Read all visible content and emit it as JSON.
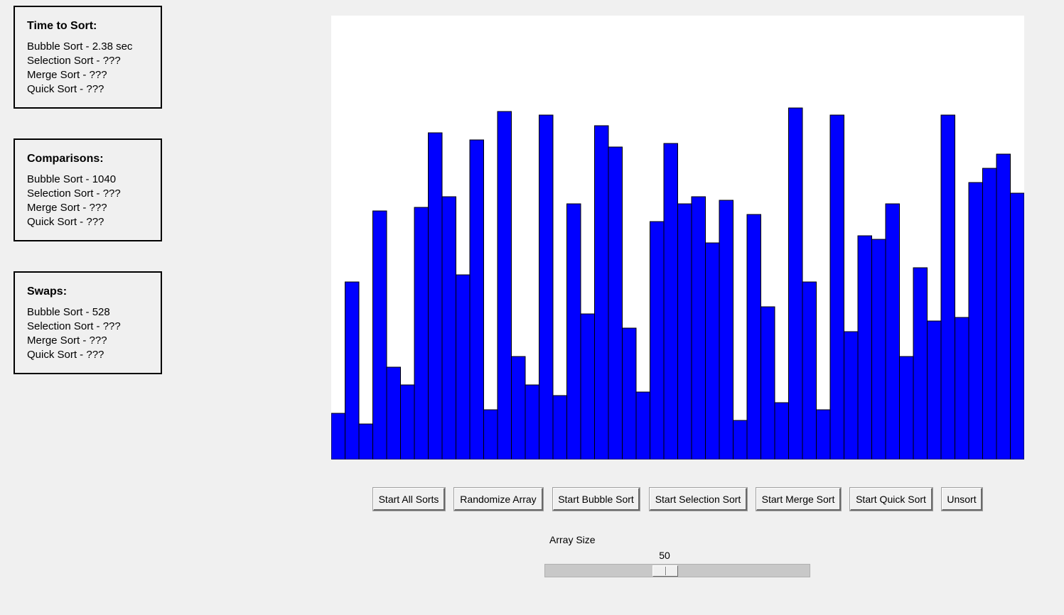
{
  "stats": {
    "time": {
      "title": "Time to Sort:",
      "lines": [
        "Bubble Sort - 2.38 sec",
        "Selection Sort - ???",
        "Merge Sort - ???",
        "Quick Sort - ???"
      ]
    },
    "comparisons": {
      "title": "Comparisons:",
      "lines": [
        "Bubble Sort - 1040",
        "Selection Sort - ???",
        "Merge Sort - ???",
        "Quick Sort - ???"
      ]
    },
    "swaps": {
      "title": "Swaps:",
      "lines": [
        "Bubble Sort - 528",
        "Selection Sort - ???",
        "Merge Sort - ???",
        "Quick Sort - ???"
      ]
    }
  },
  "buttons": {
    "start_all": "Start All Sorts",
    "randomize": "Randomize Array",
    "bubble": "Start Bubble Sort",
    "selection": "Start Selection Sort",
    "merge": "Start Merge Sort",
    "quick": "Start Quick Sort",
    "unsort": "Unsort"
  },
  "slider": {
    "label": "Array Size",
    "value": 50,
    "value_fraction": 0.45
  },
  "colors": {
    "bar_fill": "#0000ff",
    "bar_stroke": "#000000",
    "canvas_bg": "#ffffff",
    "window_bg": "#f0f0f0"
  },
  "chart_data": {
    "type": "bar",
    "values": [
      13,
      50,
      10,
      70,
      26,
      21,
      71,
      92,
      74,
      52,
      90,
      14,
      98,
      29,
      21,
      97,
      18,
      72,
      41,
      94,
      88,
      37,
      19,
      67,
      89,
      72,
      74,
      61,
      73,
      11,
      69,
      43,
      16,
      99,
      50,
      14,
      97,
      36,
      63,
      62,
      72,
      29,
      54,
      39,
      97,
      40,
      78,
      82,
      86,
      75
    ],
    "ylim": [
      0,
      125
    ]
  }
}
